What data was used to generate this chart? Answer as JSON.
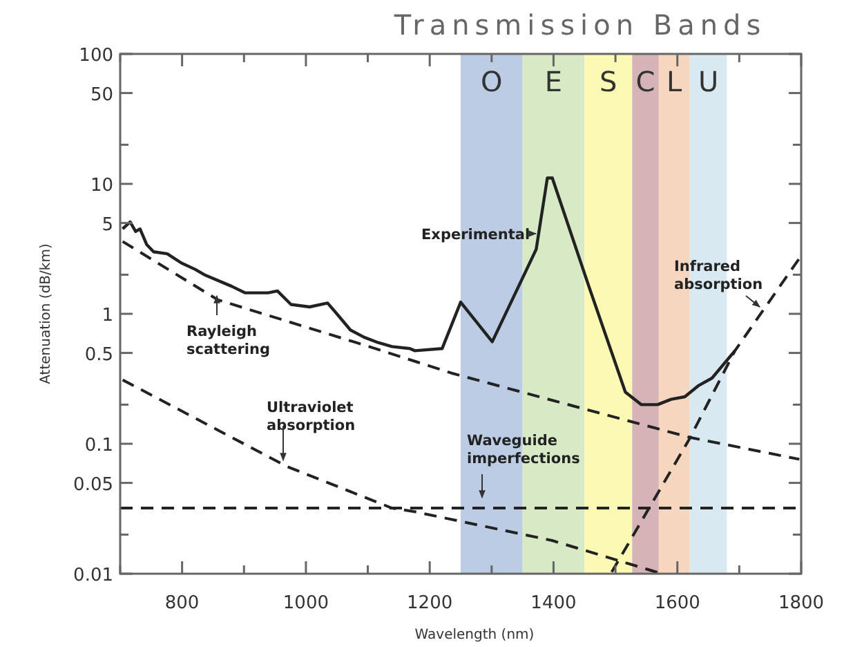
{
  "chart_data": {
    "type": "line",
    "title": "Transmission Bands",
    "xlabel": "Wavelength (nm)",
    "ylabel": "Attenuation (dB/km)",
    "log": "y",
    "xlim": [
      700,
      1800
    ],
    "ylim": [
      0.01,
      100
    ],
    "xticks": [
      {
        "value": 700,
        "label": null
      },
      800,
      {
        "value": 900,
        "label": null
      },
      1000,
      {
        "value": 1100,
        "label": null
      },
      1200,
      {
        "value": 1300,
        "label": null
      },
      1400,
      {
        "value": 1500,
        "label": null
      },
      1600,
      {
        "value": 1700,
        "label": null
      },
      1800
    ],
    "yticks": [
      0.01,
      {
        "value": 0.02,
        "label": null
      },
      0.05,
      0.1,
      {
        "value": 0.2,
        "label": null
      },
      0.5,
      1,
      {
        "value": 2,
        "label": null
      },
      5,
      10,
      {
        "value": 20,
        "label": null
      },
      50,
      100
    ],
    "grid": false,
    "bands": [
      {
        "axis": "x",
        "from": 1250,
        "to": 1350,
        "label": "O",
        "color": "#bccce4"
      },
      {
        "axis": "x",
        "from": 1350,
        "to": 1450,
        "label": "E",
        "color": "#d8e9c6"
      },
      {
        "axis": "x",
        "from": 1450,
        "to": 1527,
        "label": "S",
        "color": "#fbf9b4"
      },
      {
        "axis": "x",
        "from": 1527,
        "to": 1570,
        "label": "C",
        "color": "#d6b3b6"
      },
      {
        "axis": "x",
        "from": 1570,
        "to": 1620,
        "label": "L",
        "color": "#f6d6bf"
      },
      {
        "axis": "x",
        "from": 1620,
        "to": 1680,
        "label": "U",
        "color": "#d8e9f1"
      }
    ],
    "series": [
      {
        "name": "Experimental",
        "color": "#222222",
        "line_style": "solid",
        "x": [
          704,
          716,
          725,
          732,
          743,
          754,
          776,
          799,
          821,
          836,
          880,
          902,
          939,
          954,
          976,
          1006,
          1035,
          1050,
          1072,
          1094,
          1117,
          1139,
          1168,
          1176,
          1220,
          1250,
          1301,
          1372,
          1390,
          1398,
          1457,
          1516,
          1542,
          1568,
          1590,
          1612,
          1634,
          1656,
          1693
        ],
        "values": [
          4.5,
          5.1,
          4.3,
          4.5,
          3.4,
          3.0,
          2.9,
          2.46,
          2.2,
          2.0,
          1.63,
          1.45,
          1.45,
          1.5,
          1.18,
          1.13,
          1.21,
          1.0,
          0.75,
          0.66,
          0.6,
          0.56,
          0.54,
          0.52,
          0.54,
          1.23,
          0.61,
          3.14,
          11.1,
          11.1,
          1.63,
          0.25,
          0.2,
          0.2,
          0.22,
          0.23,
          0.28,
          0.32,
          0.52
        ]
      },
      {
        "name": "Rayleigh scattering",
        "color": "#222222",
        "line_style": "dashed",
        "x": [
          704,
          858,
          1102,
          1235,
          1620,
          1797
        ],
        "values": [
          3.6,
          1.28,
          0.56,
          0.35,
          0.112,
          0.076
        ]
      },
      {
        "name": "Ultraviolet absorption",
        "color": "#222222",
        "line_style": "dashed",
        "x": [
          704,
          969,
          1139,
          1176,
          1398,
          1575
        ],
        "values": [
          0.31,
          0.067,
          0.032,
          0.03,
          0.018,
          0.01
        ]
      },
      {
        "name": "Waveguide imperfections",
        "color": "#222222",
        "line_style": "dashed",
        "x": [
          700,
          1800
        ],
        "values": [
          0.032,
          0.032
        ]
      },
      {
        "name": "Infrared absorption",
        "color": "#222222",
        "line_style": "dashed",
        "x": [
          1494,
          1620,
          1693,
          1797
        ],
        "values": [
          0.0103,
          0.11,
          0.52,
          2.67
        ]
      }
    ]
  }
}
